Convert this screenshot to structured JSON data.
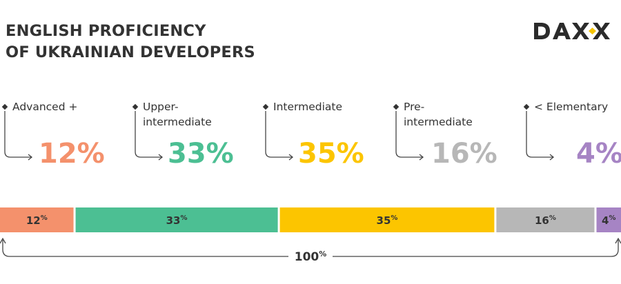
{
  "title": {
    "line1": "ENGLISH PROFICIENCY",
    "line2": "OF UKRAINIAN DEVELOPERS"
  },
  "logo": {
    "text": "DAXX",
    "icon": "daxx-logo",
    "accent": "#f5c400"
  },
  "categories": [
    {
      "label_lines": [
        "Advanced +"
      ],
      "value_text": "12%",
      "bar_text": "12",
      "color": "#f4916c"
    },
    {
      "label_lines": [
        "Upper-",
        "intermediate"
      ],
      "value_text": "33%",
      "bar_text": "33",
      "color": "#4cbf93"
    },
    {
      "label_lines": [
        "Intermediate"
      ],
      "value_text": "35%",
      "bar_text": "35",
      "color": "#fcc500"
    },
    {
      "label_lines": [
        "Pre-",
        "intermediate"
      ],
      "value_text": "16%",
      "bar_text": "16",
      "color": "#b7b7b7"
    },
    {
      "label_lines": [
        "< Elementary"
      ],
      "value_text": "4%",
      "bar_text": "4",
      "color": "#a684c4"
    }
  ],
  "total": {
    "value_text": "100",
    "unit": "%"
  },
  "chart_data": {
    "type": "bar",
    "orientation": "stacked-horizontal",
    "title": "ENGLISH PROFICIENCY OF UKRAINIAN DEVELOPERS",
    "categories": [
      "Advanced +",
      "Upper-intermediate",
      "Intermediate",
      "Pre-intermediate",
      "< Elementary"
    ],
    "values": [
      12,
      33,
      35,
      16,
      4
    ],
    "unit": "%",
    "total": 100,
    "colors": [
      "#f4916c",
      "#4cbf93",
      "#fcc500",
      "#b7b7b7",
      "#a684c4"
    ]
  }
}
